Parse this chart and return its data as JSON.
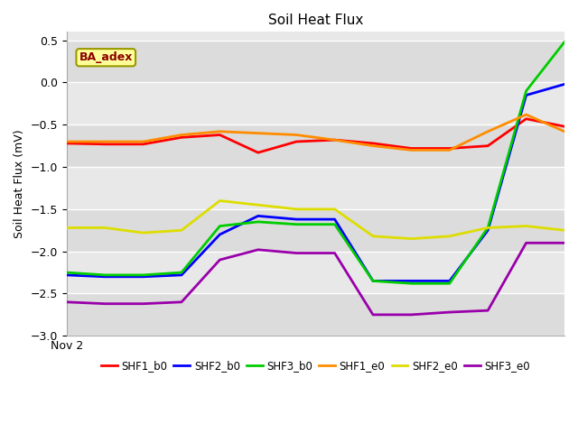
{
  "title": "Soil Heat Flux",
  "ylabel": "Soil Heat Flux (mV)",
  "xlabel": "Nov 2",
  "ylim": [
    -3.0,
    0.6
  ],
  "yticks": [
    0.5,
    0.0,
    -0.5,
    -1.0,
    -1.5,
    -2.0,
    -2.5,
    -3.0
  ],
  "annotation": "BA_adex",
  "annotation_color": "#8B0000",
  "annotation_bg": "#FFFF99",
  "annotation_edge": "#999900",
  "series": {
    "SHF1_b0": {
      "color": "#FF0000",
      "x": [
        0,
        1,
        2,
        3,
        4,
        5,
        6,
        7,
        8,
        9,
        10,
        11,
        12,
        13
      ],
      "y": [
        -0.72,
        -0.73,
        -0.73,
        -0.65,
        -0.62,
        -0.83,
        -0.7,
        -0.68,
        -0.72,
        -0.78,
        -0.78,
        -0.75,
        -0.43,
        -0.52
      ]
    },
    "SHF2_b0": {
      "color": "#0000FF",
      "x": [
        0,
        1,
        2,
        3,
        4,
        5,
        6,
        7,
        8,
        9,
        10,
        11,
        12,
        13
      ],
      "y": [
        -2.28,
        -2.3,
        -2.3,
        -2.28,
        -1.8,
        -1.58,
        -1.62,
        -1.62,
        -2.35,
        -2.35,
        -2.35,
        -1.75,
        -0.15,
        -0.02
      ]
    },
    "SHF3_b0": {
      "color": "#00CC00",
      "x": [
        0,
        1,
        2,
        3,
        4,
        5,
        6,
        7,
        8,
        9,
        10,
        11,
        12,
        13
      ],
      "y": [
        -2.25,
        -2.28,
        -2.28,
        -2.25,
        -1.7,
        -1.65,
        -1.68,
        -1.68,
        -2.35,
        -2.38,
        -2.38,
        -1.72,
        -0.1,
        0.48
      ]
    },
    "SHF1_e0": {
      "color": "#FF8C00",
      "x": [
        0,
        1,
        2,
        3,
        4,
        5,
        6,
        7,
        8,
        9,
        10,
        11,
        12,
        13
      ],
      "y": [
        -0.7,
        -0.7,
        -0.7,
        -0.62,
        -0.58,
        -0.6,
        -0.62,
        -0.68,
        -0.75,
        -0.8,
        -0.8,
        -0.58,
        -0.38,
        -0.58
      ]
    },
    "SHF2_e0": {
      "color": "#DDDD00",
      "x": [
        0,
        1,
        2,
        3,
        4,
        5,
        6,
        7,
        8,
        9,
        10,
        11,
        12,
        13
      ],
      "y": [
        -1.72,
        -1.72,
        -1.78,
        -1.75,
        -1.4,
        -1.45,
        -1.5,
        -1.5,
        -1.82,
        -1.85,
        -1.82,
        -1.72,
        -1.7,
        -1.75
      ]
    },
    "SHF3_e0": {
      "color": "#9900AA",
      "x": [
        0,
        1,
        2,
        3,
        4,
        5,
        6,
        7,
        8,
        9,
        10,
        11,
        12,
        13
      ],
      "y": [
        -2.6,
        -2.62,
        -2.62,
        -2.6,
        -2.1,
        -1.98,
        -2.02,
        -2.02,
        -2.75,
        -2.75,
        -2.72,
        -2.7,
        -1.9,
        -1.9
      ]
    }
  },
  "band_colors": [
    "#DCDCDC",
    "#E8E8E8",
    "#DCDCDC",
    "#E8E8E8",
    "#DCDCDC",
    "#E8E8E8",
    "#DCDCDC"
  ],
  "grid_color": "#FFFFFF",
  "fig_bg": "#FFFFFF"
}
